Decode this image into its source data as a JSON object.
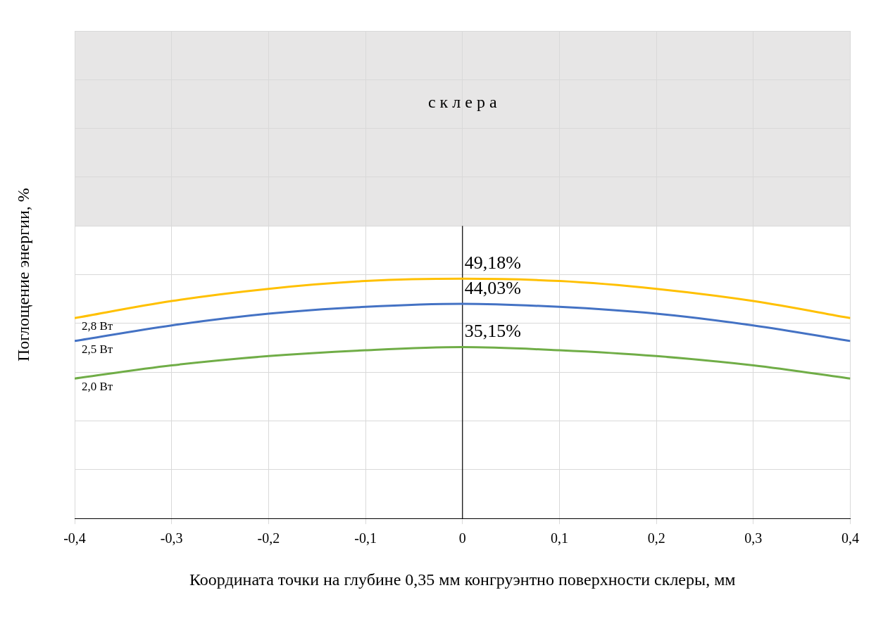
{
  "chart_data": {
    "type": "line",
    "xlabel": "Координата точки на глубине 0,35 мм конгруэнтно поверхности склеры, мм",
    "ylabel": "Поглощение энергии, %",
    "x": [
      -0.4,
      -0.3,
      -0.2,
      -0.1,
      0,
      0.1,
      0.2,
      0.3,
      0.4
    ],
    "series": [
      {
        "name": "2,8 Вт",
        "color": "#ffc000",
        "values": [
          41.1,
          44.6,
          47.1,
          48.7,
          49.18,
          48.7,
          47.1,
          44.6,
          41.1
        ],
        "value_labels": [
          null,
          null,
          null,
          null,
          "49,18%",
          null,
          null,
          null,
          null
        ]
      },
      {
        "name": "2,5 Вт",
        "color": "#4472c4",
        "values": [
          36.4,
          39.6,
          42.0,
          43.4,
          44.03,
          43.4,
          42.0,
          39.6,
          36.4
        ],
        "value_labels": [
          null,
          null,
          null,
          null,
          "44,03%",
          null,
          null,
          null,
          null
        ]
      },
      {
        "name": "2,0 Вт",
        "color": "#70ad47",
        "values": [
          28.7,
          31.4,
          33.3,
          34.5,
          35.15,
          34.5,
          33.3,
          31.4,
          28.7
        ],
        "value_labels": [
          null,
          null,
          null,
          null,
          "35,15%",
          null,
          null,
          null,
          null
        ]
      }
    ],
    "xlim": [
      -0.4,
      0.4
    ],
    "xticks": [
      {
        "value": -0.4,
        "label": "-0,4"
      },
      {
        "value": -0.3,
        "label": "-0,3"
      },
      {
        "value": -0.2,
        "label": "-0,2"
      },
      {
        "value": -0.1,
        "label": "-0,1"
      },
      0,
      {
        "value": 0.1,
        "label": "0,1"
      },
      {
        "value": 0.2,
        "label": "0,2"
      },
      {
        "value": 0.3,
        "label": "0,3"
      },
      {
        "value": 0.4,
        "label": "0,4"
      }
    ],
    "ylim": [
      0,
      100
    ],
    "yticks": [
      {
        "value": 0,
        "label": null
      },
      {
        "value": 10,
        "label": null
      },
      {
        "value": 20,
        "label": null
      },
      {
        "value": 30,
        "label": null
      },
      {
        "value": 40,
        "label": null
      },
      {
        "value": 50,
        "label": null
      },
      {
        "value": 60,
        "label": null
      },
      {
        "value": 70,
        "label": null
      },
      {
        "value": 80,
        "label": null
      },
      {
        "value": 90,
        "label": null
      },
      {
        "value": 100,
        "label": null
      }
    ],
    "tick_labels": "x",
    "grid": true,
    "legend": false,
    "marker": "none",
    "line_style": "solid",
    "ref_lines": [
      {
        "axis": "x",
        "value": 0,
        "color": "#000000"
      }
    ],
    "bands": [
      {
        "axis": "y",
        "from": 60,
        "to": 100,
        "label": "с к л е р а",
        "color": "#e7e6e6"
      }
    ]
  }
}
